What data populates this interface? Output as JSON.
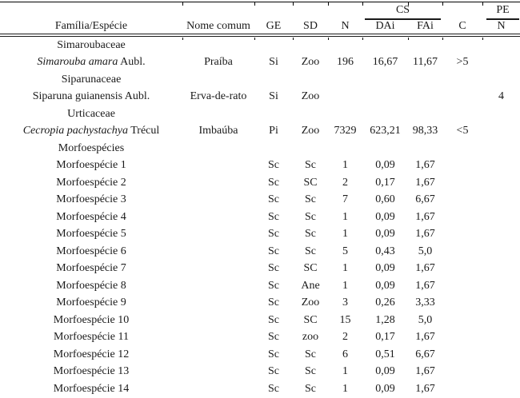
{
  "table": {
    "group_headers": {
      "cs": "CS",
      "pe": "PE"
    },
    "columns": {
      "family_species": "Família/Espécie",
      "common_name": "Nome comum",
      "ge": "GE",
      "sd": "SD",
      "n": "N",
      "dai": "DAi",
      "fai": "FAi",
      "c": "C",
      "pe_n": "N"
    },
    "rows": [
      {
        "name_plain": "Simaroubaceae",
        "cells": [
          "",
          "",
          "",
          "",
          "",
          "",
          "",
          ""
        ]
      },
      {
        "name_italic": "Simarouba amara",
        "name_plain": " Aubl.",
        "cells": [
          "Praíba",
          "Si",
          "Zoo",
          "196",
          "16,67",
          "11,67",
          ">5",
          ""
        ]
      },
      {
        "name_plain": "Siparunaceae",
        "cells": [
          "",
          "",
          "",
          "",
          "",
          "",
          "",
          ""
        ]
      },
      {
        "name_plain": "Siparuna guianensis Aubl.",
        "cells": [
          "Erva-de-rato",
          "Si",
          "Zoo",
          "",
          "",
          "",
          "",
          "4"
        ]
      },
      {
        "name_plain": "Urticaceae",
        "cells": [
          "",
          "",
          "",
          "",
          "",
          "",
          "",
          ""
        ]
      },
      {
        "name_italic": "Cecropia pachystachya",
        "name_plain": " Trécul",
        "cells": [
          "Imbaúba",
          "Pi",
          "Zoo",
          "7329",
          "623,21",
          "98,33",
          "<5",
          ""
        ]
      },
      {
        "name_plain": "Morfoespécies",
        "cells": [
          "",
          "",
          "",
          "",
          "",
          "",
          "",
          ""
        ]
      },
      {
        "name_plain": "Morfoespécie 1",
        "cells": [
          "",
          "Sc",
          "Sc",
          "1",
          "0,09",
          "1,67",
          "",
          ""
        ]
      },
      {
        "name_plain": "Morfoespécie 2",
        "cells": [
          "",
          "Sc",
          "SC",
          "2",
          "0,17",
          "1,67",
          "",
          ""
        ]
      },
      {
        "name_plain": "Morfoespécie 3",
        "cells": [
          "",
          "Sc",
          "Sc",
          "7",
          "0,60",
          "6,67",
          "",
          ""
        ]
      },
      {
        "name_plain": "Morfoespécie 4",
        "cells": [
          "",
          "Sc",
          "Sc",
          "1",
          "0,09",
          "1,67",
          "",
          ""
        ]
      },
      {
        "name_plain": "Morfoespécie 5",
        "cells": [
          "",
          "Sc",
          "Sc",
          "1",
          "0,09",
          "1,67",
          "",
          ""
        ]
      },
      {
        "name_plain": "Morfoespécie 6",
        "cells": [
          "",
          "Sc",
          "Sc",
          "5",
          "0,43",
          "5,0",
          "",
          ""
        ]
      },
      {
        "name_plain": "Morfoespécie 7",
        "cells": [
          "",
          "Sc",
          "SC",
          "1",
          "0,09",
          "1,67",
          "",
          ""
        ]
      },
      {
        "name_plain": "Morfoespécie 8",
        "cells": [
          "",
          "Sc",
          "Ane",
          "1",
          "0,09",
          "1,67",
          "",
          ""
        ]
      },
      {
        "name_plain": "Morfoespécie 9",
        "cells": [
          "",
          "Sc",
          "Zoo",
          "3",
          "0,26",
          "3,33",
          "",
          ""
        ]
      },
      {
        "name_plain": "Morfoespécie 10",
        "cells": [
          "",
          "Sc",
          "SC",
          "15",
          "1,28",
          "5,0",
          "",
          ""
        ]
      },
      {
        "name_plain": "Morfoespécie 11",
        "cells": [
          "",
          "Sc",
          "zoo",
          "2",
          "0,17",
          "1,67",
          "",
          ""
        ]
      },
      {
        "name_plain": "Morfoespécie 12",
        "cells": [
          "",
          "Sc",
          "Sc",
          "6",
          "0,51",
          "6,67",
          "",
          ""
        ]
      },
      {
        "name_plain": "Morfoespécie 13",
        "cells": [
          "",
          "Sc",
          "Sc",
          "1",
          "0,09",
          "1,67",
          "",
          ""
        ]
      },
      {
        "name_plain": "Morfoespécie 14",
        "cells": [
          "",
          "Sc",
          "Sc",
          "1",
          "0,09",
          "1,67",
          "",
          ""
        ]
      }
    ]
  }
}
